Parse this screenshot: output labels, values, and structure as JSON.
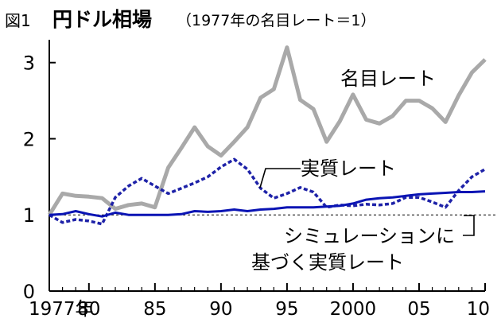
{
  "header": {
    "figure_number": "図1",
    "title": "円ドル相場",
    "subtitle": "（1977年の名目レート＝1）"
  },
  "colors": {
    "nominal": "#a9a9a9",
    "real": "#1e22a8",
    "simulated": "#0a14b4",
    "axis": "#000000",
    "reference": "#000000"
  },
  "chart_data": {
    "type": "line",
    "title": "円ドル相場",
    "subtitle": "（1977年の名目レート＝1）",
    "xlabel": "",
    "ylabel": "",
    "xlim": [
      1977,
      2010
    ],
    "ylim": [
      0,
      3.3
    ],
    "x_ticks": [
      1977,
      1980,
      1985,
      1990,
      1995,
      2000,
      2005,
      2010
    ],
    "x_tick_labels": [
      "1977年",
      "80",
      "85",
      "90",
      "95",
      "2000",
      "05",
      "10"
    ],
    "y_ticks": [
      0,
      1,
      2,
      3
    ],
    "y_tick_labels": [
      "0",
      "1",
      "2",
      "3"
    ],
    "grid": false,
    "reference_line": 1,
    "x": [
      1977,
      1978,
      1979,
      1980,
      1981,
      1982,
      1983,
      1984,
      1985,
      1986,
      1987,
      1988,
      1989,
      1990,
      1991,
      1992,
      1993,
      1994,
      1995,
      1996,
      1997,
      1998,
      1999,
      2000,
      2001,
      2002,
      2003,
      2004,
      2005,
      2006,
      2007,
      2008,
      2009,
      2010
    ],
    "series": [
      {
        "name": "名目レート",
        "style": "solid",
        "values": [
          1.0,
          1.28,
          1.25,
          1.24,
          1.22,
          1.08,
          1.13,
          1.15,
          1.1,
          1.62,
          1.88,
          2.15,
          1.9,
          1.78,
          1.96,
          2.15,
          2.54,
          2.65,
          3.2,
          2.51,
          2.39,
          1.96,
          2.23,
          2.58,
          2.25,
          2.2,
          2.3,
          2.5,
          2.5,
          2.4,
          2.22,
          2.57,
          2.87,
          3.04
        ]
      },
      {
        "name": "実質レート",
        "style": "dotted",
        "values": [
          1.0,
          0.9,
          0.94,
          0.92,
          0.88,
          1.23,
          1.38,
          1.48,
          1.38,
          1.28,
          1.35,
          1.42,
          1.5,
          1.63,
          1.73,
          1.6,
          1.35,
          1.22,
          1.28,
          1.36,
          1.3,
          1.1,
          1.13,
          1.12,
          1.14,
          1.13,
          1.15,
          1.23,
          1.23,
          1.17,
          1.1,
          1.32,
          1.5,
          1.6
        ]
      },
      {
        "name": "シミュレーションに基づく実質レート",
        "style": "solid",
        "values": [
          1.0,
          1.01,
          1.05,
          1.01,
          0.98,
          1.03,
          1.0,
          1.0,
          1.0,
          1.0,
          1.01,
          1.05,
          1.04,
          1.05,
          1.07,
          1.05,
          1.07,
          1.08,
          1.1,
          1.1,
          1.1,
          1.11,
          1.12,
          1.15,
          1.2,
          1.22,
          1.23,
          1.25,
          1.27,
          1.28,
          1.29,
          1.3,
          1.3,
          1.31
        ]
      }
    ],
    "annotations": {
      "nominal": "名目レート",
      "real": "実質レート",
      "simulated_line1": "シミュレーションに",
      "simulated_line2": "基づく実質レート"
    },
    "legend": "none (inline labels)"
  }
}
